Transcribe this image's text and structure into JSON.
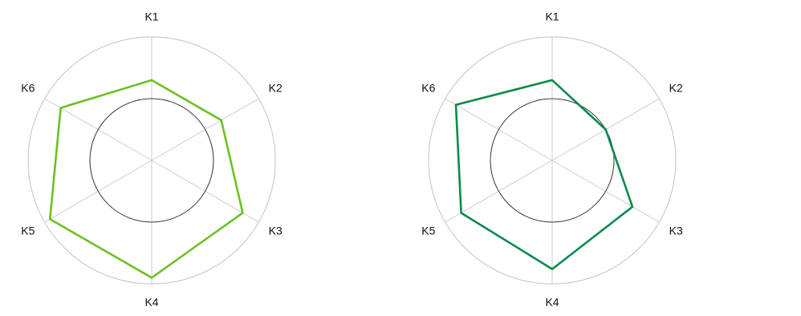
{
  "chart_data": [
    {
      "type": "radar",
      "axes": [
        "K1",
        "K2",
        "K3",
        "K4",
        "K5",
        "K6"
      ],
      "rlim": [
        0,
        1
      ],
      "reference_circle": 0.5,
      "grid": true,
      "series": [
        {
          "color": "#6cc024",
          "values": [
            0.65,
            0.65,
            0.85,
            0.95,
            0.95,
            0.85
          ]
        }
      ]
    },
    {
      "type": "radar",
      "axes": [
        "K1",
        "K2",
        "K3",
        "K4",
        "K5",
        "K6"
      ],
      "rlim": [
        0,
        1
      ],
      "reference_circle": 0.5,
      "grid": true,
      "series": [
        {
          "color": "#0a8a4a",
          "values": [
            0.65,
            0.5,
            0.75,
            0.88,
            0.85,
            0.9
          ]
        }
      ]
    }
  ]
}
